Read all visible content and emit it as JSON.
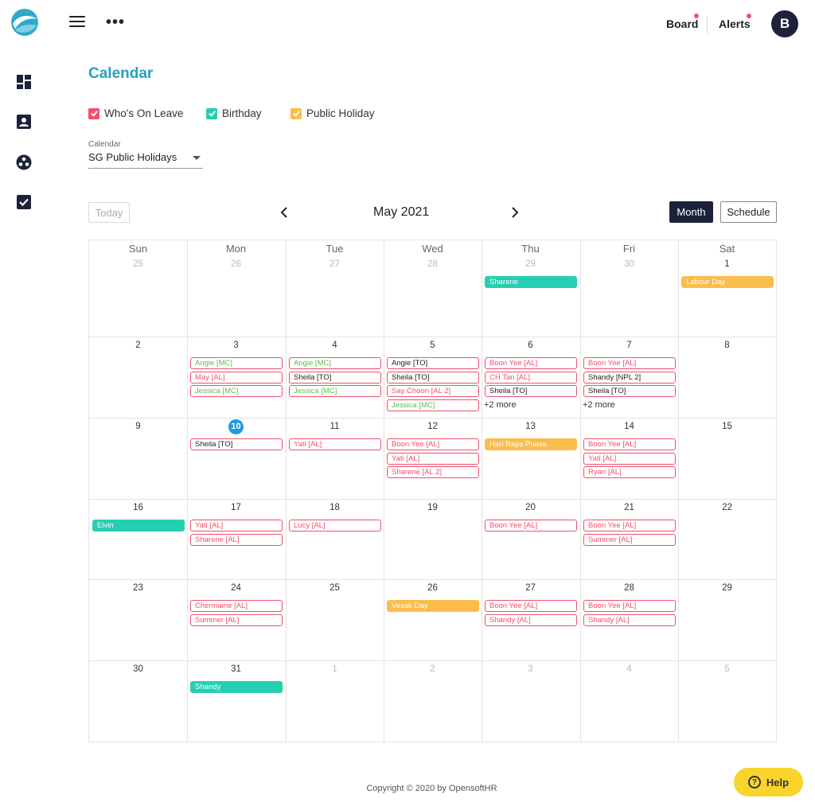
{
  "topbar": {
    "logo_icon": "brand-wave-logo",
    "menu_icon": "hamburger-menu-icon",
    "more_icon": "more-dots-icon",
    "board_label": "Board",
    "alerts_label": "Alerts",
    "avatar_initial": "B",
    "notification_color": "#f0506e"
  },
  "sidebar": {
    "items": [
      {
        "icon": "dashboard-icon"
      },
      {
        "icon": "contact-card-icon"
      },
      {
        "icon": "team-icon"
      },
      {
        "icon": "checkbox-icon"
      }
    ]
  },
  "page": {
    "title": "Calendar",
    "legend": [
      {
        "label": "Who's On Leave",
        "color": "#f0506e"
      },
      {
        "label": "Birthday",
        "color": "#26cfb2"
      },
      {
        "label": "Public Holiday",
        "color": "#fbbd4c"
      }
    ],
    "calendar_select": {
      "label": "Calendar",
      "value": "SG Public Holidays"
    }
  },
  "toolbar": {
    "today_label": "Today",
    "month_title": "May 2021",
    "month_label": "Month",
    "schedule_label": "Schedule"
  },
  "calendar": {
    "weekdays": [
      "Sun",
      "Mon",
      "Tue",
      "Wed",
      "Thu",
      "Fri",
      "Sat"
    ],
    "weeks": [
      [
        {
          "day": "25",
          "dim": true,
          "events": []
        },
        {
          "day": "26",
          "dim": true,
          "events": []
        },
        {
          "day": "27",
          "dim": true,
          "events": []
        },
        {
          "day": "28",
          "dim": true,
          "events": []
        },
        {
          "day": "29",
          "dim": true,
          "events": [
            {
              "text": "Sharene",
              "style": "fill-teal"
            }
          ]
        },
        {
          "day": "30",
          "dim": true,
          "events": []
        },
        {
          "day": "1",
          "events": [
            {
              "text": "Labour Day",
              "style": "fill-orange"
            }
          ]
        }
      ],
      [
        {
          "day": "2",
          "events": []
        },
        {
          "day": "3",
          "events": [
            {
              "text": "Angie [MC]",
              "style": "c-green"
            },
            {
              "text": "May [AL]",
              "style": "c-red"
            },
            {
              "text": "Jessica [MC]",
              "style": "c-green"
            }
          ]
        },
        {
          "day": "4",
          "events": [
            {
              "text": "Angie [MC]",
              "style": "c-green"
            },
            {
              "text": "Sheila [TO]",
              "style": "c-black"
            },
            {
              "text": "Jessica [MC]",
              "style": "c-green"
            }
          ]
        },
        {
          "day": "5",
          "events": [
            {
              "text": "Angie [TO]",
              "style": "c-black"
            },
            {
              "text": "Sheila [TO]",
              "style": "c-black"
            },
            {
              "text": "Say Choon [AL 2]",
              "style": "c-red"
            },
            {
              "text": "Jessica [MC]",
              "style": "c-green"
            }
          ]
        },
        {
          "day": "6",
          "events": [
            {
              "text": "Boon Yee [AL]",
              "style": "c-red"
            },
            {
              "text": "CH Tan [AL]",
              "style": "c-red"
            },
            {
              "text": "Sheila [TO]",
              "style": "c-black"
            }
          ],
          "more": "+2 more"
        },
        {
          "day": "7",
          "events": [
            {
              "text": "Boon Yee [AL]",
              "style": "c-red"
            },
            {
              "text": "Shandy [NPL 2]",
              "style": "c-black"
            },
            {
              "text": "Sheila [TO]",
              "style": "c-black"
            }
          ],
          "more": "+2 more"
        },
        {
          "day": "8",
          "events": []
        }
      ],
      [
        {
          "day": "9",
          "events": []
        },
        {
          "day": "10",
          "today": true,
          "events": [
            {
              "text": "Sheila [TO]",
              "style": "c-black"
            }
          ]
        },
        {
          "day": "11",
          "events": [
            {
              "text": "Yati [AL]",
              "style": "c-red"
            }
          ]
        },
        {
          "day": "12",
          "events": [
            {
              "text": "Boon Yee [AL]",
              "style": "c-red"
            },
            {
              "text": "Yati [AL]",
              "style": "c-red"
            },
            {
              "text": "Sharene [AL 2]",
              "style": "c-red"
            }
          ]
        },
        {
          "day": "13",
          "events": [
            {
              "text": "Hari Raya Puasa",
              "style": "fill-orange"
            }
          ]
        },
        {
          "day": "14",
          "events": [
            {
              "text": "Boon Yee [AL]",
              "style": "c-red"
            },
            {
              "text": "Yati [AL]",
              "style": "c-red"
            },
            {
              "text": "Ryan [AL]",
              "style": "c-red"
            }
          ]
        },
        {
          "day": "15",
          "events": []
        }
      ],
      [
        {
          "day": "16",
          "events": [
            {
              "text": "Elvin",
              "style": "fill-teal"
            }
          ]
        },
        {
          "day": "17",
          "events": [
            {
              "text": "Yati [AL]",
              "style": "c-red"
            },
            {
              "text": "Sharene [AL]",
              "style": "c-red"
            }
          ]
        },
        {
          "day": "18",
          "events": [
            {
              "text": "Lucy [AL]",
              "style": "c-red"
            }
          ]
        },
        {
          "day": "19",
          "events": []
        },
        {
          "day": "20",
          "events": [
            {
              "text": "Boon Yee [AL]",
              "style": "c-red"
            }
          ]
        },
        {
          "day": "21",
          "events": [
            {
              "text": "Boon Yee [AL]",
              "style": "c-red"
            },
            {
              "text": "Summer [AL]",
              "style": "c-red"
            }
          ]
        },
        {
          "day": "22",
          "events": []
        }
      ],
      [
        {
          "day": "23",
          "events": []
        },
        {
          "day": "24",
          "events": [
            {
              "text": "Chermaine [AL]",
              "style": "c-red"
            },
            {
              "text": "Summer [AL]",
              "style": "c-red"
            }
          ]
        },
        {
          "day": "25",
          "events": []
        },
        {
          "day": "26",
          "events": [
            {
              "text": "Vesak Day",
              "style": "fill-orange"
            }
          ]
        },
        {
          "day": "27",
          "events": [
            {
              "text": "Boon Yee [AL]",
              "style": "c-red"
            },
            {
              "text": "Shandy [AL]",
              "style": "c-red"
            }
          ]
        },
        {
          "day": "28",
          "events": [
            {
              "text": "Boon Yee [AL]",
              "style": "c-red"
            },
            {
              "text": "Shandy [AL]",
              "style": "c-red"
            }
          ]
        },
        {
          "day": "29",
          "events": []
        }
      ],
      [
        {
          "day": "30",
          "events": []
        },
        {
          "day": "31",
          "events": [
            {
              "text": "Shandy",
              "style": "fill-teal"
            }
          ]
        },
        {
          "day": "1",
          "dim": true,
          "events": []
        },
        {
          "day": "2",
          "dim": true,
          "events": []
        },
        {
          "day": "3",
          "dim": true,
          "events": []
        },
        {
          "day": "4",
          "dim": true,
          "events": []
        },
        {
          "day": "5",
          "dim": true,
          "events": []
        }
      ]
    ]
  },
  "footer": {
    "copyright": "Copyright © 2020 by OpensoftHR",
    "help_label": "Help"
  }
}
